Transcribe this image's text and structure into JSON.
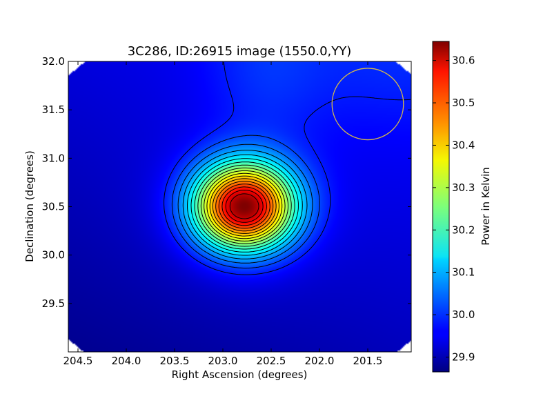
{
  "chart_data": {
    "type": "heatmap",
    "title": "3C286, ID:26915 image (1550.0,YY)",
    "xlabel": "Right Ascension (degrees)",
    "ylabel": "Declination (degrees)",
    "xlim": [
      204.6,
      201.05
    ],
    "ylim": [
      29.0,
      32.0
    ],
    "x_ticks": [
      204.5,
      204.0,
      203.5,
      203.0,
      202.5,
      202.0,
      201.5
    ],
    "x_tick_labels": [
      "204.5",
      "204.0",
      "203.5",
      "203.0",
      "202.5",
      "202.0",
      "201.5"
    ],
    "y_ticks": [
      29.5,
      30.0,
      30.5,
      31.0,
      31.5,
      32.0
    ],
    "y_tick_labels": [
      "29.5",
      "30.0",
      "30.5",
      "31.0",
      "31.5",
      "32.0"
    ],
    "colormap": "jet",
    "colorbar": {
      "label": "Power in Kelvin",
      "range": [
        29.865,
        30.645
      ],
      "ticks": [
        29.9,
        30.0,
        30.1,
        30.2,
        30.3,
        30.4,
        30.5,
        30.6
      ],
      "tick_labels": [
        "29.9",
        "30.0",
        "30.1",
        "30.2",
        "30.3",
        "30.4",
        "30.5",
        "30.6"
      ]
    },
    "peak": {
      "ra": 202.78,
      "dec": 30.5,
      "value": 30.63
    },
    "background_value": 29.95,
    "contours": {
      "count": 18,
      "color": "#000000"
    },
    "beam_circle": {
      "ra": 201.5,
      "dec": 31.56,
      "radius_deg": 0.37,
      "color": "#d4b84a"
    }
  }
}
